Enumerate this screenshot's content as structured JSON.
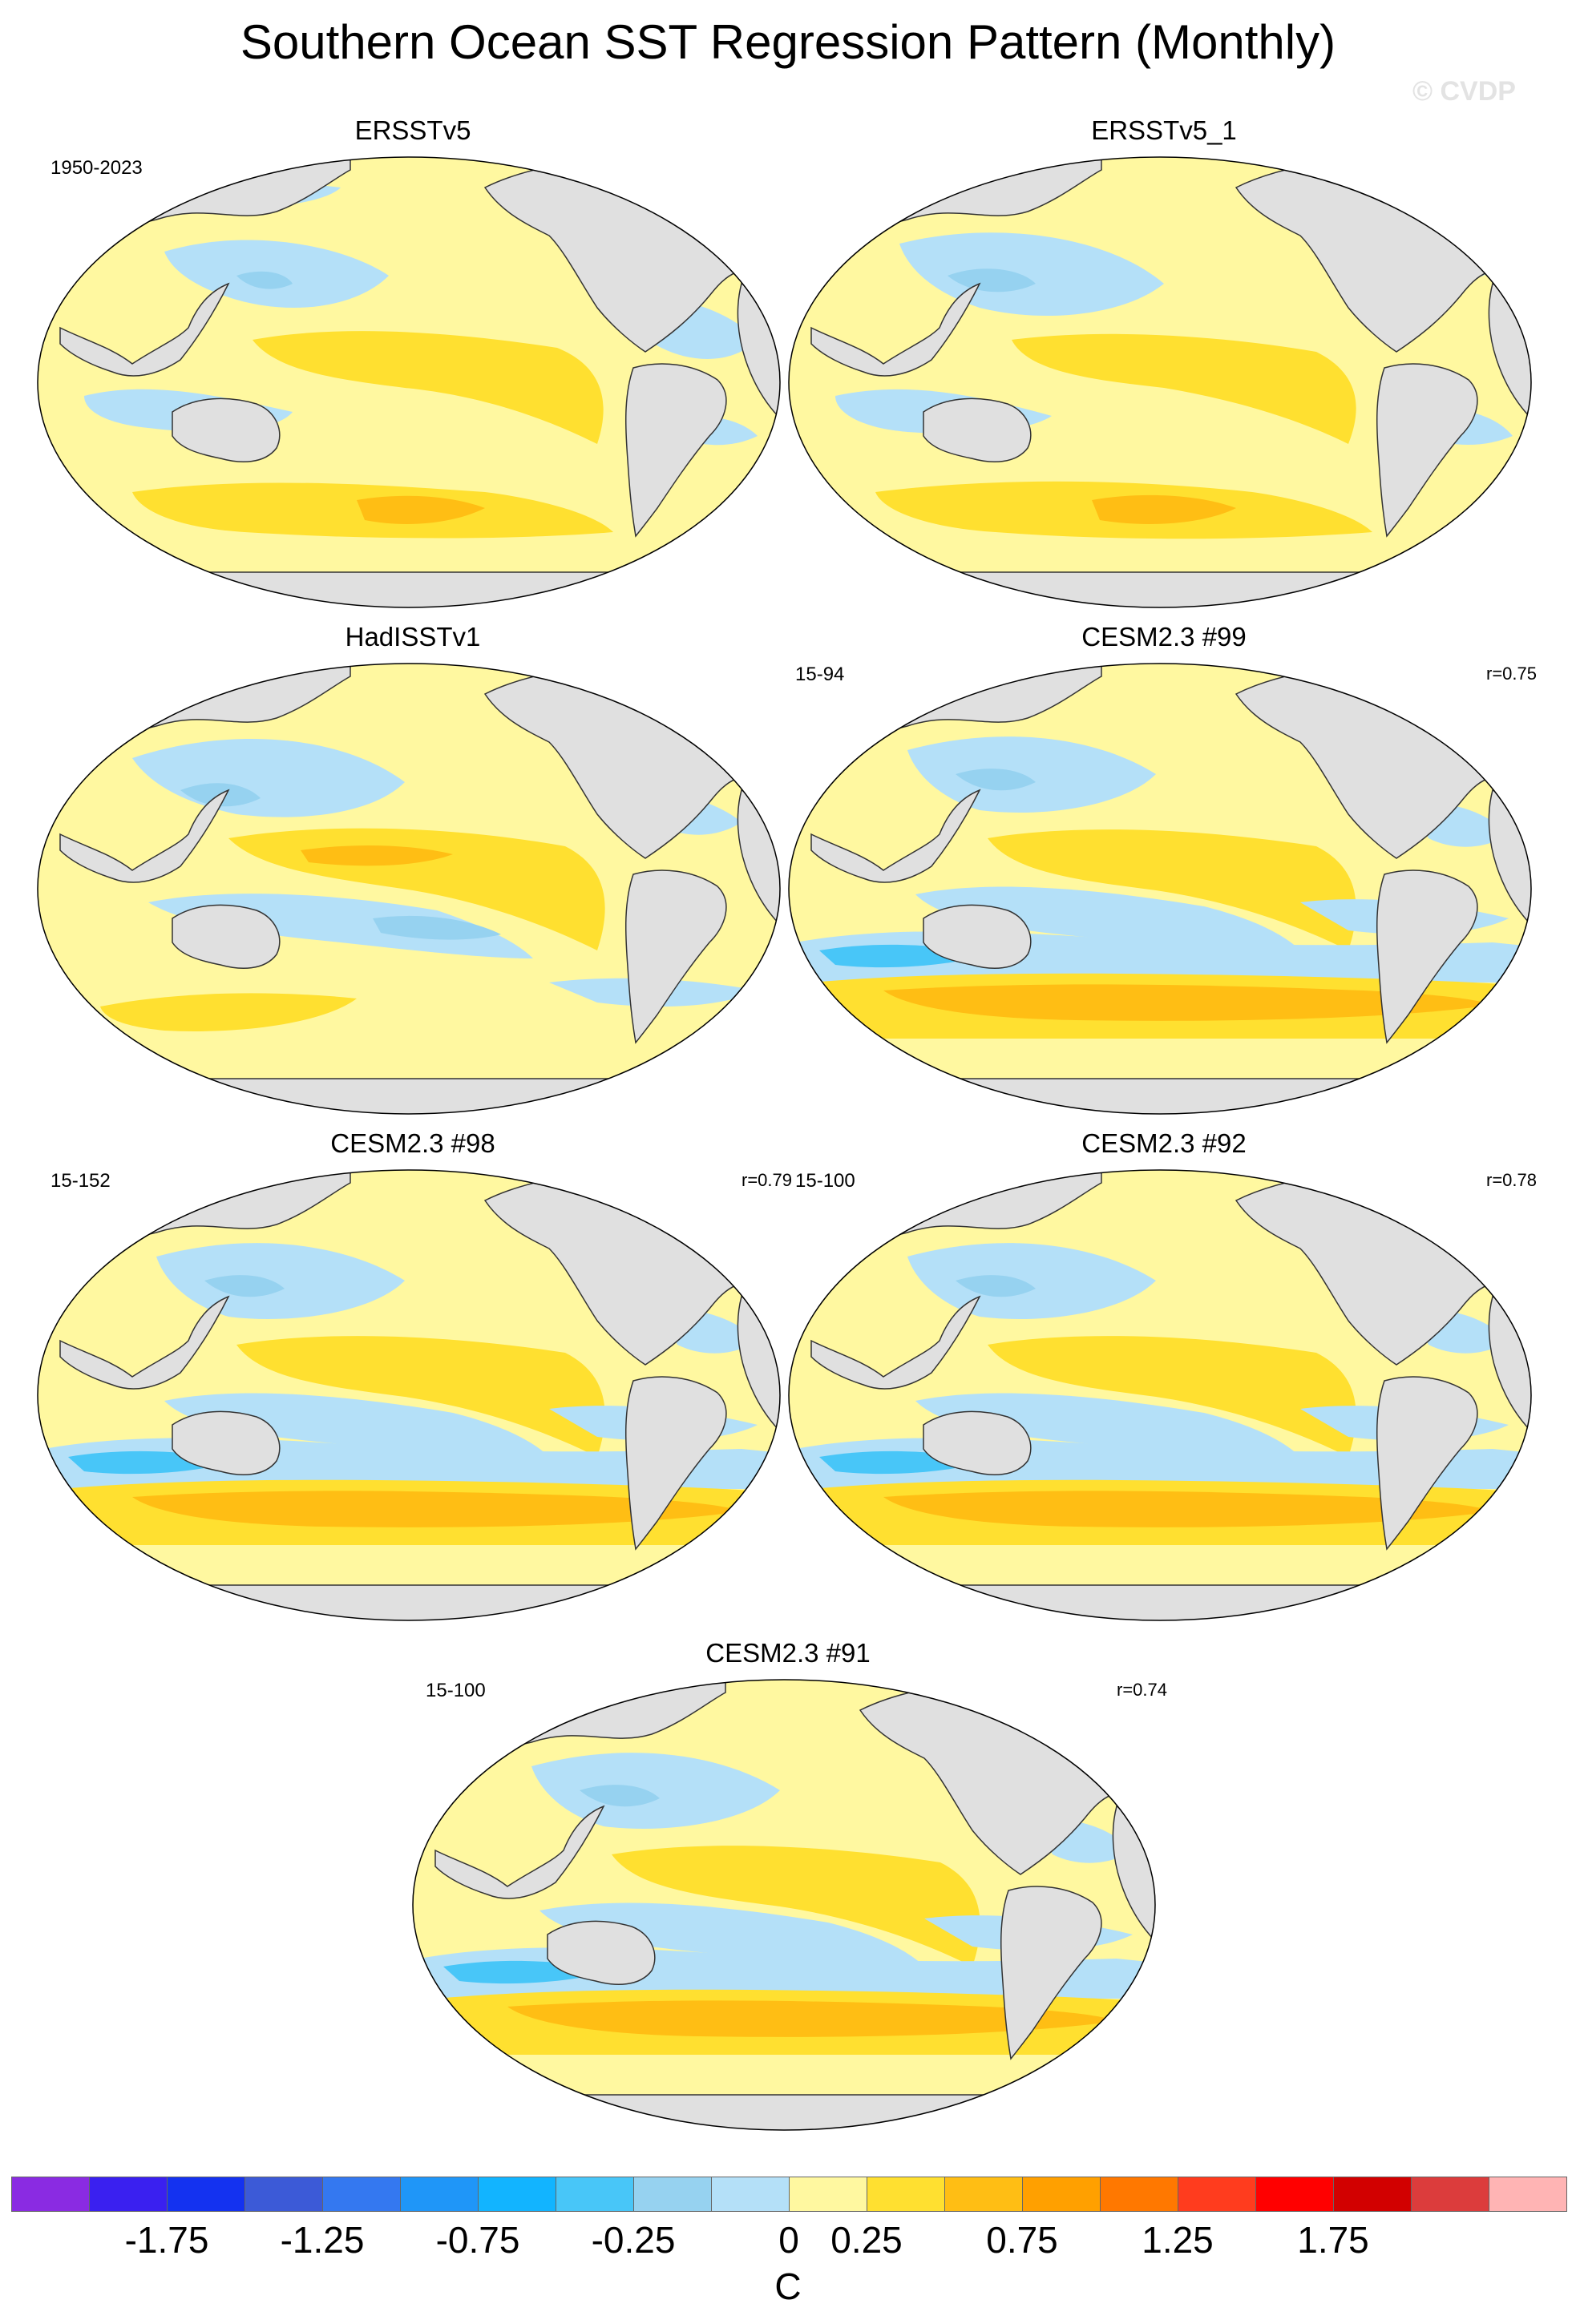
{
  "title": "Southern Ocean SST Regression Pattern (Monthly)",
  "watermark": "© CVDP",
  "panels": [
    {
      "title": "ERSSTv5",
      "period": "1950-2023",
      "corr": "",
      "variant": "obs1"
    },
    {
      "title": "ERSSTv5_1",
      "period": "",
      "corr": "",
      "variant": "obs2"
    },
    {
      "title": "HadISSTv1",
      "period": "",
      "corr": "",
      "variant": "obs3"
    },
    {
      "title": "CESM2.3 #99",
      "period": "15-94",
      "corr": "r=0.75",
      "variant": "mod"
    },
    {
      "title": "CESM2.3 #98",
      "period": "15-152",
      "corr": "r=0.79",
      "variant": "mod"
    },
    {
      "title": "CESM2.3 #92",
      "period": "15-100",
      "corr": "r=0.78",
      "variant": "mod"
    },
    {
      "title": "CESM2.3 #91",
      "period": "15-100",
      "corr": "r=0.74",
      "variant": "mod"
    }
  ],
  "colorbar": {
    "units": "C",
    "colors": [
      "#8a2be2",
      "#3a20f0",
      "#1432f0",
      "#3c5ad7",
      "#3478f0",
      "#1f96f8",
      "#12b4ff",
      "#48c6f8",
      "#96d2f0",
      "#b4e0f8",
      "#fff8a0",
      "#ffe030",
      "#ffbe14",
      "#ffa000",
      "#ff7800",
      "#ff3c1e",
      "#ff0000",
      "#d20000",
      "#dc3c3c",
      "#ffb4b4"
    ],
    "tick_labels": [
      "-1.75",
      "-1.25",
      "-0.75",
      "-0.25",
      "0",
      "0.25",
      "0.75",
      "1.25",
      "1.75"
    ]
  },
  "chart_data": {
    "type": "heatmap",
    "variable": "SST regression",
    "units": "C",
    "contour_levels": [
      -2.0,
      -1.75,
      -1.5,
      -1.25,
      -1.0,
      -0.75,
      -0.5,
      -0.25,
      -0.1,
      0,
      0.1,
      0.25,
      0.5,
      0.75,
      1.0,
      1.25,
      1.5,
      1.75,
      2.0
    ],
    "maps": [
      "ERSSTv5",
      "ERSSTv5_1",
      "HadISSTv1",
      "CESM2.3 #99",
      "CESM2.3 #98",
      "CESM2.3 #92",
      "CESM2.3 #91"
    ],
    "pattern_correlations": {
      "CESM2.3 #99": 0.75,
      "CESM2.3 #98": 0.79,
      "CESM2.3 #92": 0.78,
      "CESM2.3 #91": 0.74
    }
  }
}
